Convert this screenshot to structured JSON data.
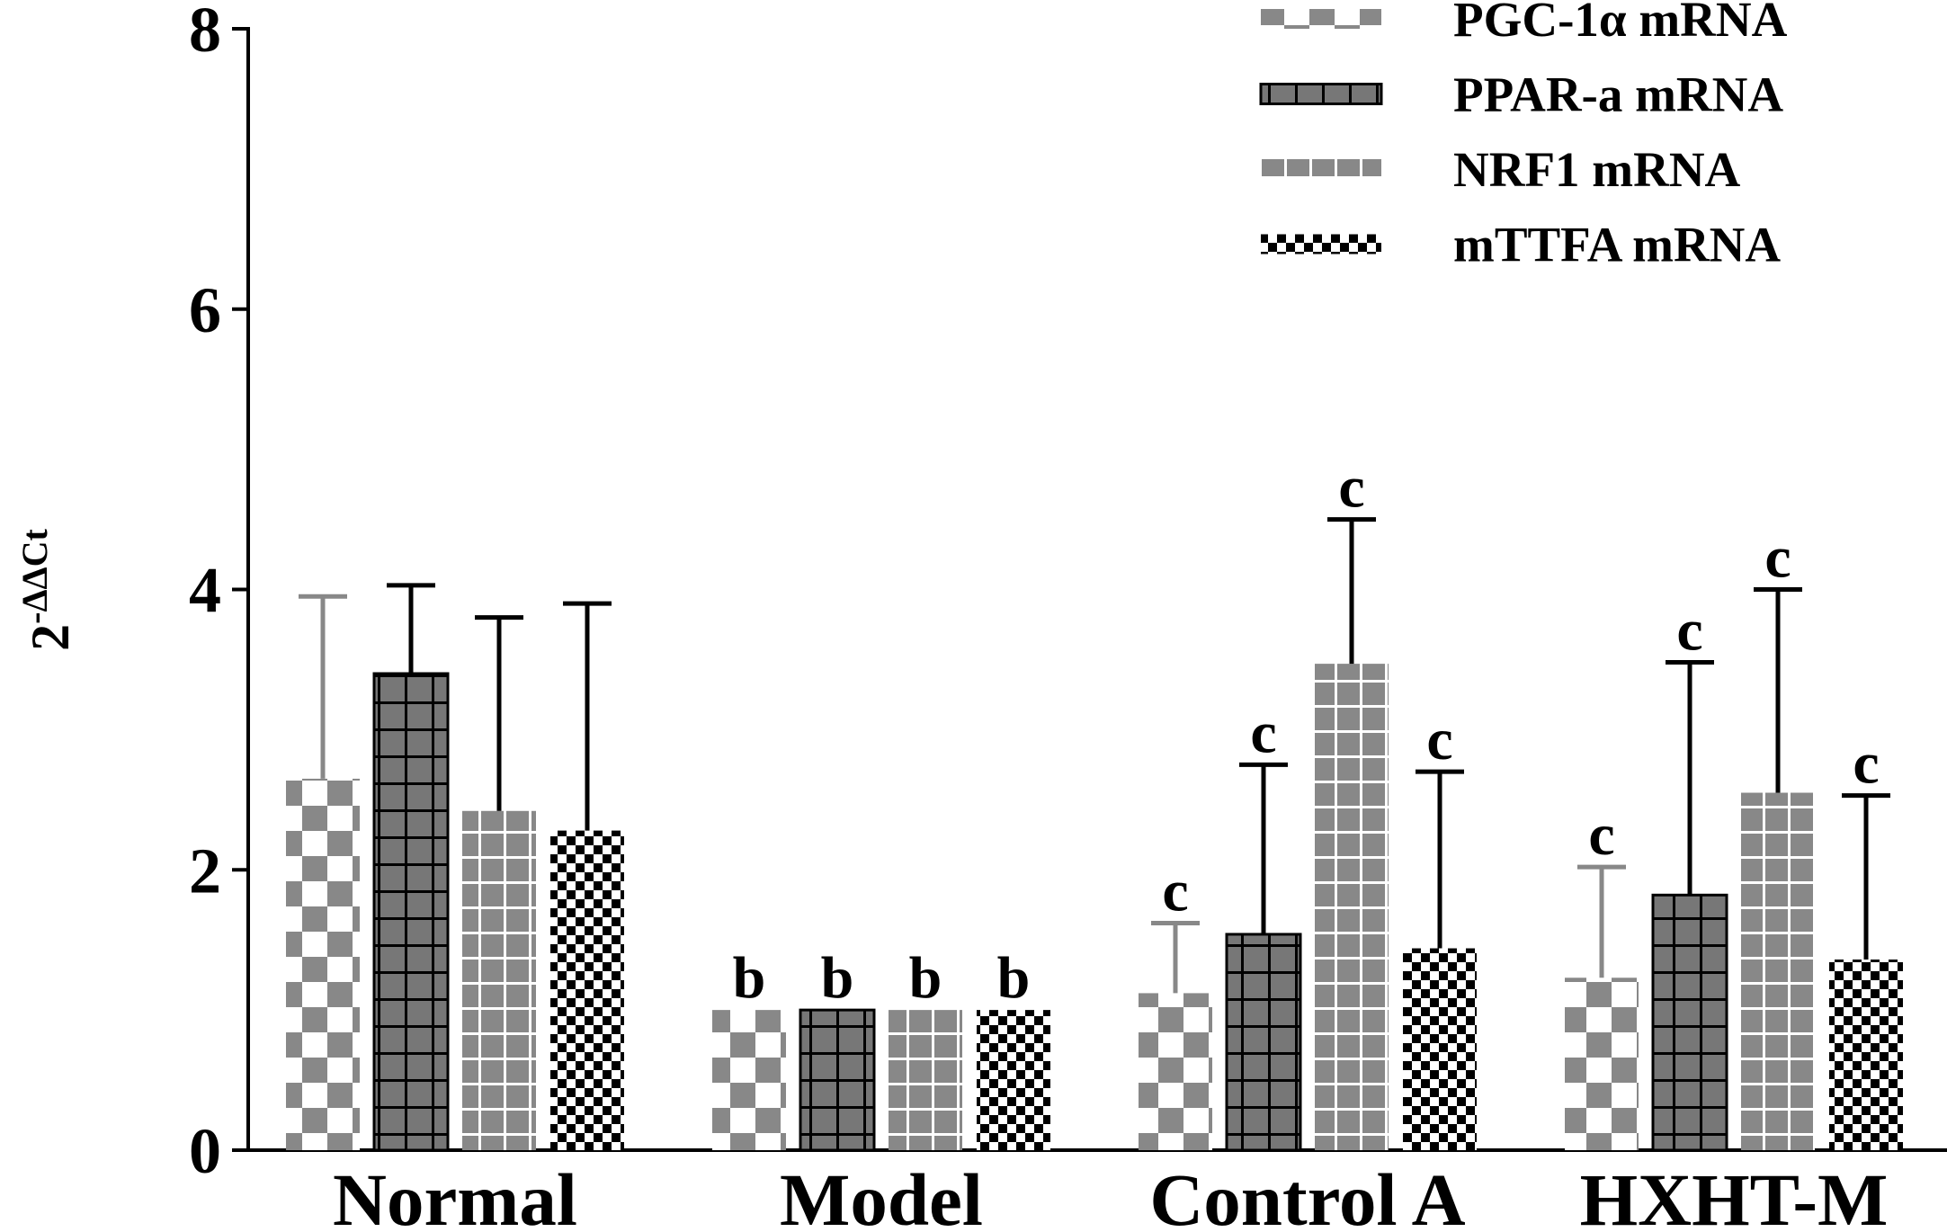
{
  "chart_data": {
    "type": "bar",
    "ylabel_base": "2",
    "ylabel_exponent": "-ΔΔCt",
    "categories": [
      "Normal",
      "Model",
      "Control A",
      "HXHT-M"
    ],
    "ylim": [
      0,
      8
    ],
    "yticks": [
      0,
      2,
      4,
      6,
      8
    ],
    "series": [
      {
        "name": "PGC-1α mRNA",
        "color": "#888888",
        "values": [
          2.65,
          1.0,
          1.12,
          1.23
        ],
        "errors": [
          1.3,
          null,
          0.5,
          0.79
        ],
        "annotations": [
          null,
          "b",
          "c",
          "c"
        ]
      },
      {
        "name": "PPAR-a mRNA",
        "color": "#777777",
        "values": [
          3.4,
          1.0,
          1.54,
          1.82
        ],
        "errors": [
          0.63,
          null,
          1.21,
          1.66
        ],
        "annotations": [
          null,
          "b",
          "c",
          "c"
        ]
      },
      {
        "name": "NRF1 mRNA",
        "color": "#888888",
        "values": [
          2.42,
          1.0,
          3.47,
          2.55
        ],
        "errors": [
          1.38,
          null,
          1.03,
          1.45
        ],
        "annotations": [
          null,
          "b",
          "c",
          "c"
        ]
      },
      {
        "name": "mTTFA mRNA",
        "color": "#000000",
        "values": [
          2.28,
          1.0,
          1.44,
          1.36
        ],
        "errors": [
          1.62,
          null,
          1.26,
          1.17
        ],
        "annotations": [
          null,
          "b",
          "c",
          "c"
        ]
      }
    ]
  }
}
